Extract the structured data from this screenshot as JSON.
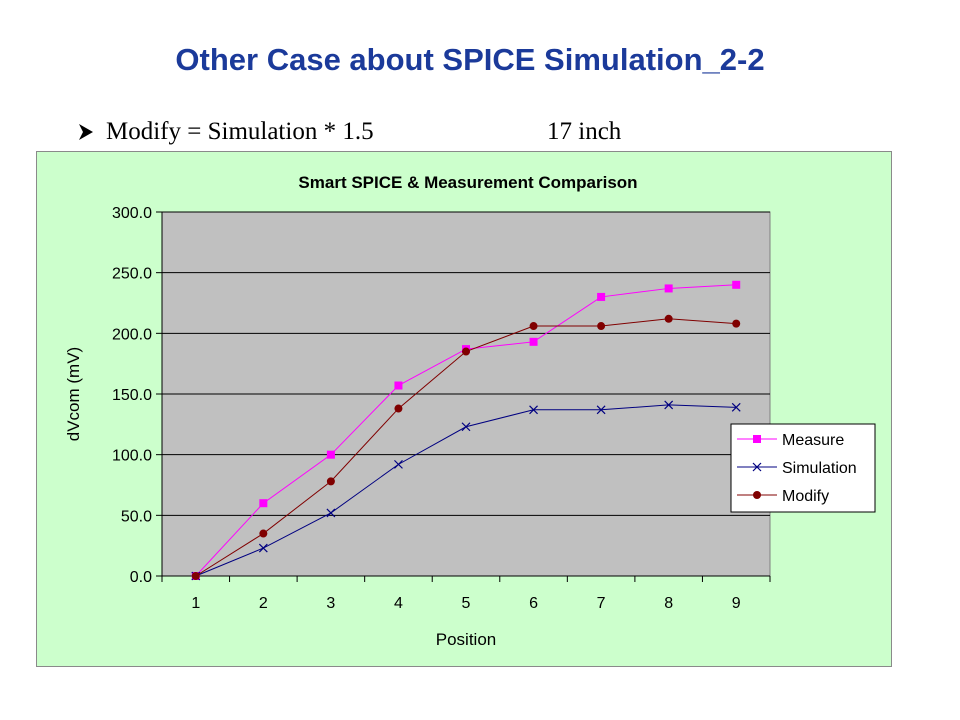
{
  "slide": {
    "title": "Other Case about SPICE Simulation_2-2",
    "bullet": "Modify = Simulation * 1.5",
    "bullet_extra": "17 inch"
  },
  "colors": {
    "title": "#1b3a9a",
    "chart_background": "#ccffcc",
    "plot_background": "#c0c0c0",
    "measure": "#ff00ff",
    "simulation": "#000080",
    "modify": "#800000"
  },
  "chart_data": {
    "type": "line",
    "title": "Smart SPICE & Measurement Comparison",
    "xlabel": "Position",
    "ylabel": "dVcom (mV)",
    "categories": [
      "1",
      "2",
      "3",
      "4",
      "5",
      "6",
      "7",
      "8",
      "9"
    ],
    "ylim": [
      0,
      300
    ],
    "yticks": [
      0,
      50,
      100,
      150,
      200,
      250,
      300
    ],
    "ytick_labels": [
      "0.0",
      "50.0",
      "100.0",
      "150.0",
      "200.0",
      "250.0",
      "300.0"
    ],
    "grid": "horizontal",
    "legend_position": "right",
    "series": [
      {
        "name": "Measure",
        "marker": "square",
        "color": "#ff00ff",
        "values": [
          0,
          60,
          100,
          157,
          187,
          193,
          230,
          237,
          240
        ]
      },
      {
        "name": "Simulation",
        "marker": "x",
        "color": "#000080",
        "values": [
          0,
          23,
          52,
          92,
          123,
          137,
          137,
          141,
          139
        ]
      },
      {
        "name": "Modify",
        "marker": "circle",
        "color": "#800000",
        "values": [
          0,
          35,
          78,
          138,
          185,
          206,
          206,
          212,
          208
        ]
      }
    ]
  }
}
